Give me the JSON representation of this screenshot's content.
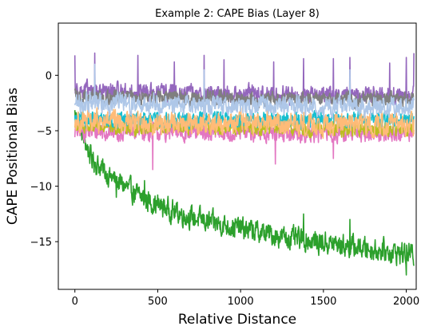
{
  "chart_data": {
    "type": "line",
    "title": "Example 2: CAPE Bias (Layer 8)",
    "xlabel": "Relative Distance",
    "ylabel": "CAPE Positional Bias",
    "xlim": [
      -100,
      2060
    ],
    "ylim": [
      -19.3,
      4.7
    ],
    "xticks": [
      0,
      500,
      1000,
      1500,
      2000
    ],
    "yticks": [
      0,
      -5,
      -10,
      -15
    ],
    "grid": false,
    "legend": "none",
    "series": [
      {
        "color": "#2ca02c",
        "x": [
          0,
          100,
          200,
          300,
          400,
          500,
          600,
          700,
          800,
          900,
          1000,
          1100,
          1200,
          1300,
          1400,
          1500,
          1600,
          1700,
          1800,
          1900,
          2000,
          2047
        ],
        "y": [
          -3.5,
          -7.5,
          -9.0,
          -10.0,
          -11.0,
          -11.7,
          -12.3,
          -12.8,
          -13.2,
          -13.5,
          -13.8,
          -14.1,
          -14.4,
          -14.7,
          -14.9,
          -15.1,
          -15.3,
          -15.5,
          -15.7,
          -15.9,
          -16.1,
          -16.2
        ],
        "noise": 1.5,
        "spikes": [
          [
            250,
            -11
          ],
          [
            420,
            -9.5
          ],
          [
            1380,
            -12.5
          ],
          [
            1660,
            -13
          ],
          [
            2000,
            -18
          ]
        ]
      },
      {
        "color": "#e377c2",
        "x": [
          0,
          500,
          1000,
          1500,
          2047
        ],
        "y": [
          -5.0,
          -5.1,
          -5.2,
          -5.2,
          -5.2
        ],
        "noise": 1.3,
        "spikes": [
          [
            470,
            -8.5
          ],
          [
            1210,
            -8
          ],
          [
            1560,
            -7.5
          ]
        ]
      },
      {
        "color": "#bcbd22",
        "x": [
          0,
          500,
          1000,
          1500,
          2047
        ],
        "y": [
          -4.6,
          -4.7,
          -4.7,
          -4.8,
          -4.8
        ],
        "noise": 1.0,
        "spikes": []
      },
      {
        "color": "#17becf",
        "x": [
          0,
          500,
          1000,
          1500,
          2047
        ],
        "y": [
          -4.0,
          -4.0,
          -4.0,
          -4.0,
          -4.0
        ],
        "noise": 1.0,
        "spikes": []
      },
      {
        "color": "#ffbb78",
        "x": [
          0,
          500,
          1000,
          1500,
          2047
        ],
        "y": [
          -4.2,
          -4.3,
          -4.3,
          -4.4,
          -4.4
        ],
        "noise": 1.5,
        "spikes": []
      },
      {
        "color": "#9467bd",
        "x": [
          0,
          500,
          1000,
          1500,
          2047
        ],
        "y": [
          -1.4,
          -1.6,
          -1.7,
          -1.8,
          -1.8
        ],
        "noise": 1.2,
        "spikes": [
          [
            0,
            1.8
          ],
          [
            120,
            2.0
          ],
          [
            380,
            1.8
          ],
          [
            600,
            1.2
          ],
          [
            780,
            1.8
          ],
          [
            900,
            1.4
          ],
          [
            1200,
            1.2
          ],
          [
            1380,
            1.5
          ],
          [
            1560,
            1.5
          ],
          [
            1660,
            1.6
          ],
          [
            1900,
            1.1
          ],
          [
            2000,
            1.6
          ],
          [
            2047,
            2.0
          ]
        ]
      },
      {
        "color": "#7f7f7f",
        "x": [
          0,
          500,
          1000,
          1500,
          2047
        ],
        "y": [
          -1.9,
          -2.0,
          -2.1,
          -2.2,
          -2.2
        ],
        "noise": 1.0,
        "spikes": []
      },
      {
        "color": "#aec7e8",
        "x": [
          0,
          500,
          1000,
          1500,
          2047
        ],
        "y": [
          -2.5,
          -2.6,
          -2.7,
          -2.8,
          -2.8
        ],
        "noise": 1.3,
        "spikes": [
          [
            120,
            1.0
          ],
          [
            780,
            0.5
          ],
          [
            1660,
            0.5
          ]
        ]
      }
    ]
  }
}
